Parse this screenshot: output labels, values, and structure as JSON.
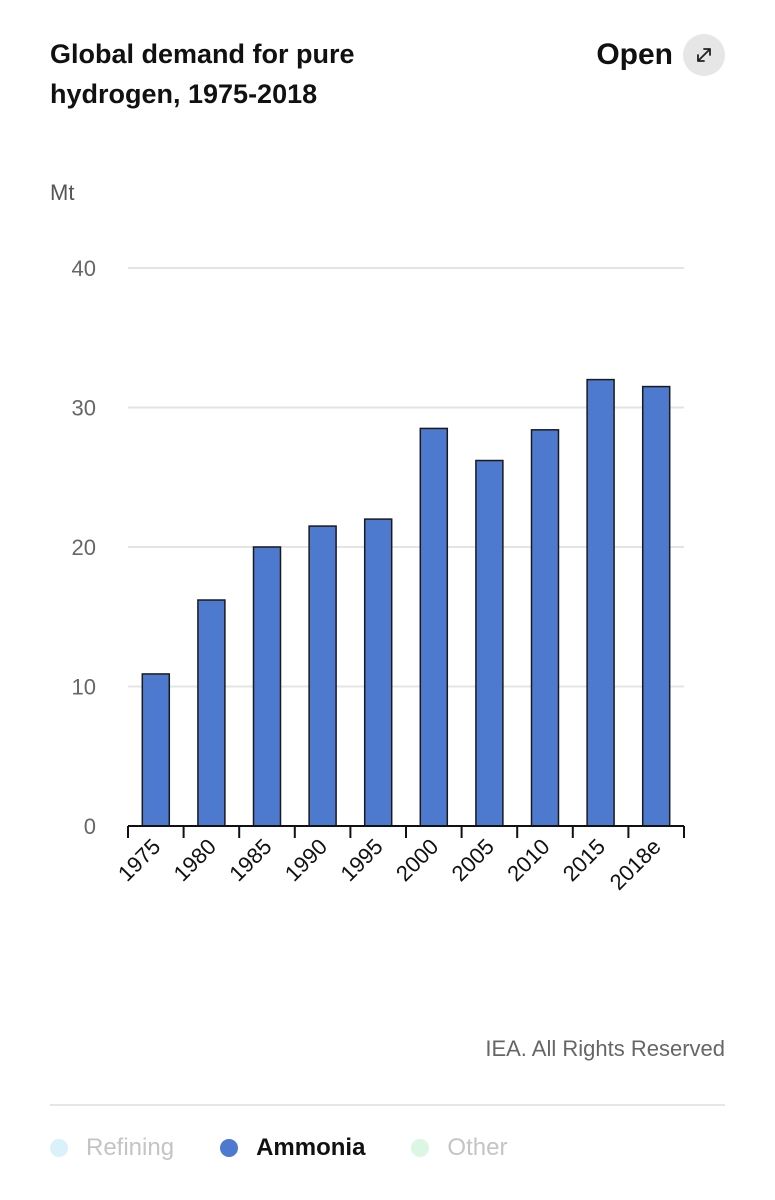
{
  "header": {
    "title": "Global demand for pure hydrogen, 1975-2018",
    "open_label": "Open",
    "open_icon": "expand-icon"
  },
  "chart_data": {
    "type": "bar",
    "title": "Global demand for pure hydrogen, 1975-2018",
    "ylabel": "Mt",
    "xlabel": "",
    "categories": [
      "1975",
      "1980",
      "1985",
      "1990",
      "1995",
      "2000",
      "2005",
      "2010",
      "2015",
      "2018e"
    ],
    "series": [
      {
        "name": "Ammonia",
        "color": "#4d79cf",
        "values": [
          10.9,
          16.2,
          20.0,
          21.5,
          22.0,
          28.5,
          26.2,
          28.4,
          32.0,
          31.5
        ]
      }
    ],
    "yticks": [
      0,
      10,
      20,
      30,
      40
    ],
    "ylim": [
      0,
      40
    ],
    "grid": true
  },
  "footer": {
    "credit": "IEA. All Rights Reserved"
  },
  "legend": [
    {
      "label": "Refining",
      "color": "#d9f1fb",
      "active": false
    },
    {
      "label": "Ammonia",
      "color": "#4d79cf",
      "active": true
    },
    {
      "label": "Other",
      "color": "#dcf6e4",
      "active": false
    }
  ]
}
